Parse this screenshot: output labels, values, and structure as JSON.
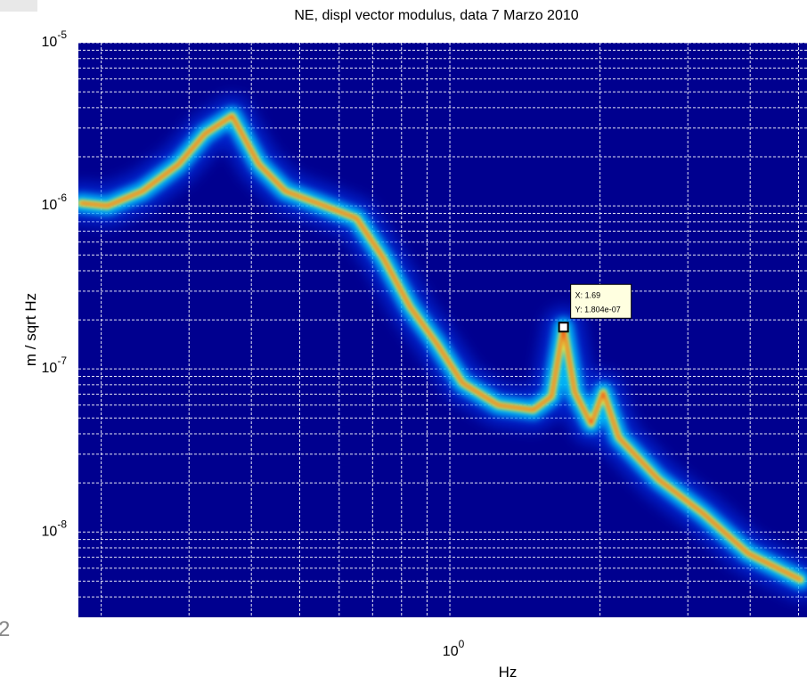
{
  "page_number": "2",
  "chart_data": {
    "type": "density-line",
    "title": "NE, displ vector modulus, data 7 Marzo 2010",
    "xlabel": "Hz",
    "ylabel": "m / sqrt Hz",
    "xscale": "log",
    "yscale": "log",
    "xlim": [
      0.18,
      5.2
    ],
    "ylim": [
      3e-09,
      1e-05
    ],
    "xticks": [
      {
        "value": 1,
        "label": "10",
        "sup": "0"
      }
    ],
    "yticks": [
      {
        "value": 1e-08,
        "label": "10",
        "sup": "-8"
      },
      {
        "value": 1e-07,
        "label": "10",
        "sup": "-7"
      },
      {
        "value": 1e-06,
        "label": "10",
        "sup": "-6"
      },
      {
        "value": 1e-05,
        "label": "10",
        "sup": "-5"
      }
    ],
    "xgrid": [
      0.2,
      0.3,
      0.4,
      0.5,
      0.6,
      0.7,
      0.8,
      0.9,
      2,
      3,
      4,
      5
    ],
    "ygrid": [
      4e-09,
      5e-09,
      6e-09,
      7e-09,
      8e-09,
      9e-09,
      2e-08,
      3e-08,
      4e-08,
      5e-08,
      6e-08,
      7e-08,
      8e-08,
      9e-08,
      2e-07,
      3e-07,
      4e-07,
      5e-07,
      6e-07,
      7e-07,
      8e-07,
      9e-07,
      2e-06,
      3e-06,
      4e-06,
      5e-06,
      6e-06,
      7e-06,
      8e-06,
      9e-06
    ],
    "grid": true,
    "background": "#00008f",
    "colormap": [
      "#0040ff",
      "#00d8ff",
      "#f0ff40",
      "#ff2000"
    ],
    "x": [
      0.182,
      0.206,
      0.242,
      0.286,
      0.323,
      0.366,
      0.414,
      0.468,
      0.551,
      0.65,
      0.735,
      0.832,
      0.94,
      1.06,
      1.25,
      1.47,
      1.6,
      1.69,
      1.78,
      1.92,
      2.03,
      2.18,
      2.62,
      3.22,
      3.96,
      5.05
    ],
    "values": [
      1.04e-06,
      1e-06,
      1.23e-06,
      1.8e-06,
      2.77e-06,
      3.56e-06,
      1.8e-06,
      1.23e-06,
      1.02e-06,
      8.4e-07,
      4.8e-07,
      2.4e-07,
      1.44e-07,
      8.2e-08,
      6e-08,
      5.6e-08,
      6.8e-08,
      1.804e-07,
      7.2e-08,
      4.6e-08,
      7.2e-08,
      3.8e-08,
      2.1e-08,
      1.3e-08,
      7.4e-09,
      5.1e-09
    ],
    "datatip": {
      "x": 1.69,
      "y": 1.804e-07,
      "text": [
        "X: 1.69",
        "Y: 1.804e-07"
      ]
    }
  }
}
